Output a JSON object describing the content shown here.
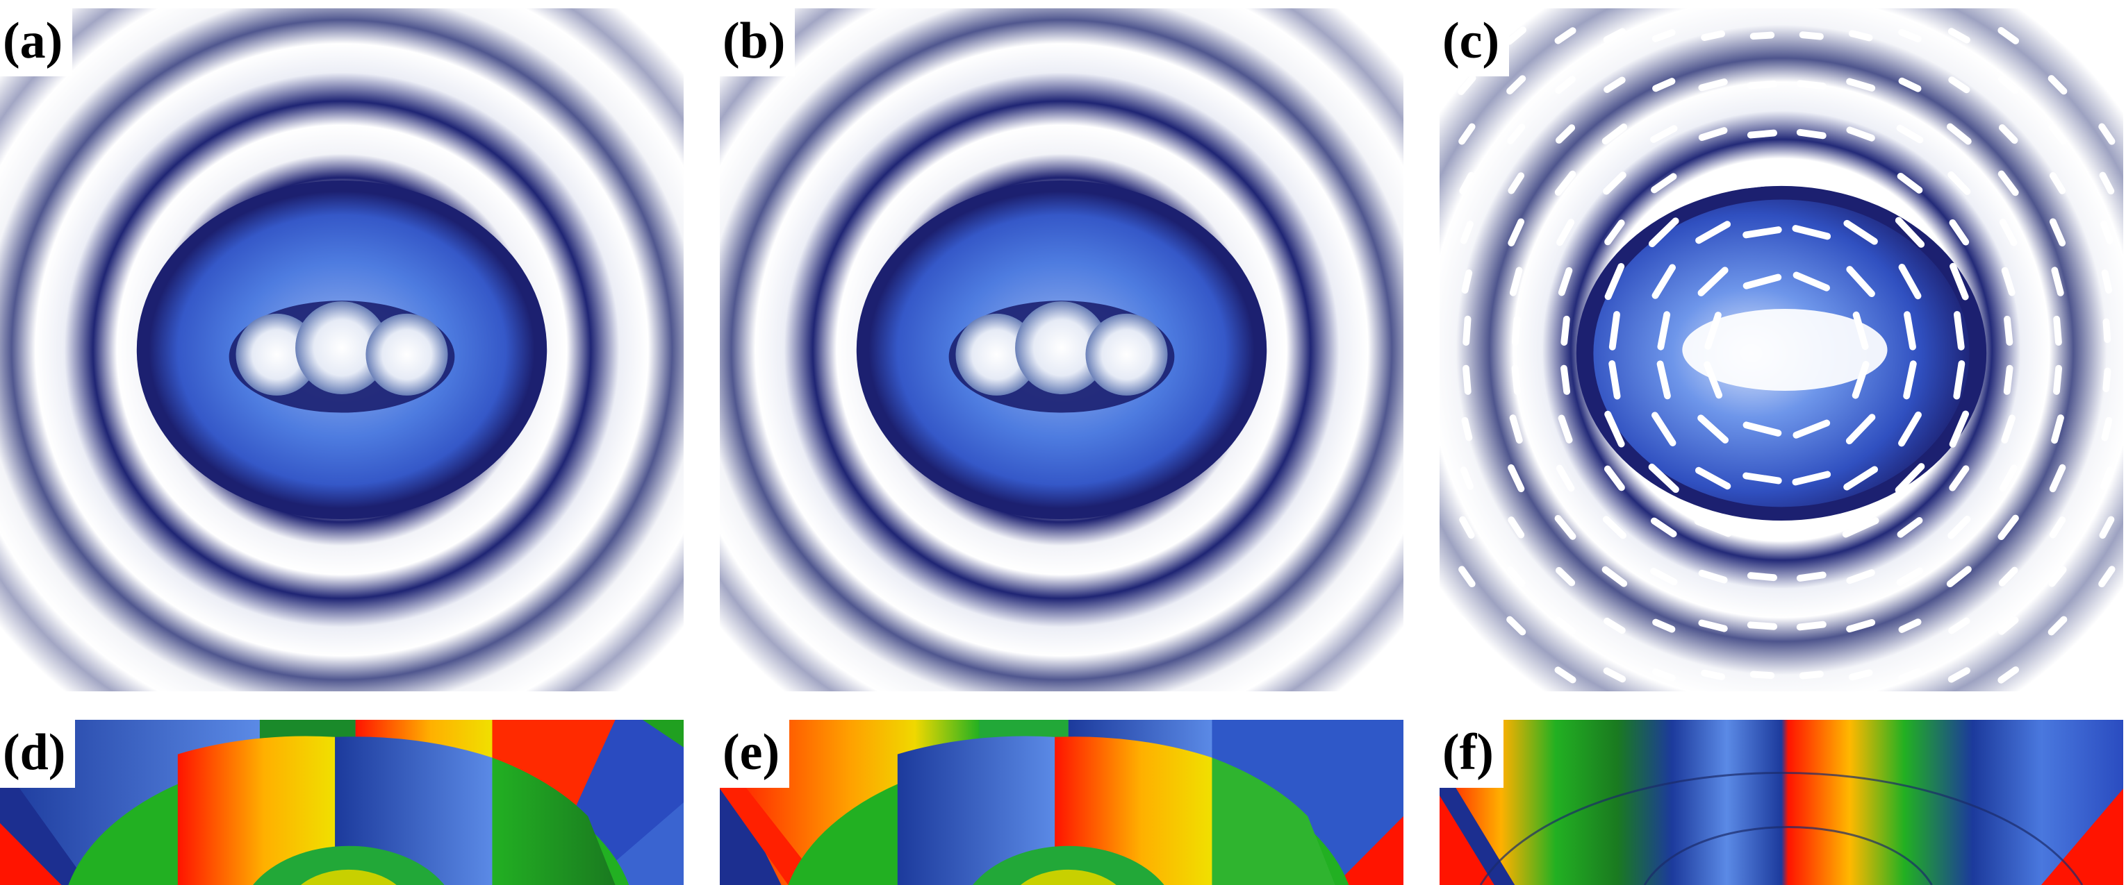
{
  "figure": {
    "panels": [
      {
        "id": "a",
        "label": "(a)",
        "kind": "intensity"
      },
      {
        "id": "b",
        "label": "(b)",
        "kind": "intensity"
      },
      {
        "id": "c",
        "label": "(c)",
        "kind": "intensity-polarization"
      },
      {
        "id": "d",
        "label": "(d)",
        "kind": "phase"
      },
      {
        "id": "e",
        "label": "(e)",
        "kind": "phase"
      },
      {
        "id": "f",
        "label": "(f)",
        "kind": "phase"
      }
    ],
    "colors": {
      "intensity_dark": "#1c2070",
      "intensity_mid": "#3a6ad8",
      "intensity_light": "#9ab4ee",
      "background": "#ffffff",
      "phase_blue": "#1c3a9c",
      "phase_green": "#22b022",
      "phase_yellow": "#f0d000",
      "phase_red": "#ff1400",
      "glyph": "#ffffff"
    }
  }
}
